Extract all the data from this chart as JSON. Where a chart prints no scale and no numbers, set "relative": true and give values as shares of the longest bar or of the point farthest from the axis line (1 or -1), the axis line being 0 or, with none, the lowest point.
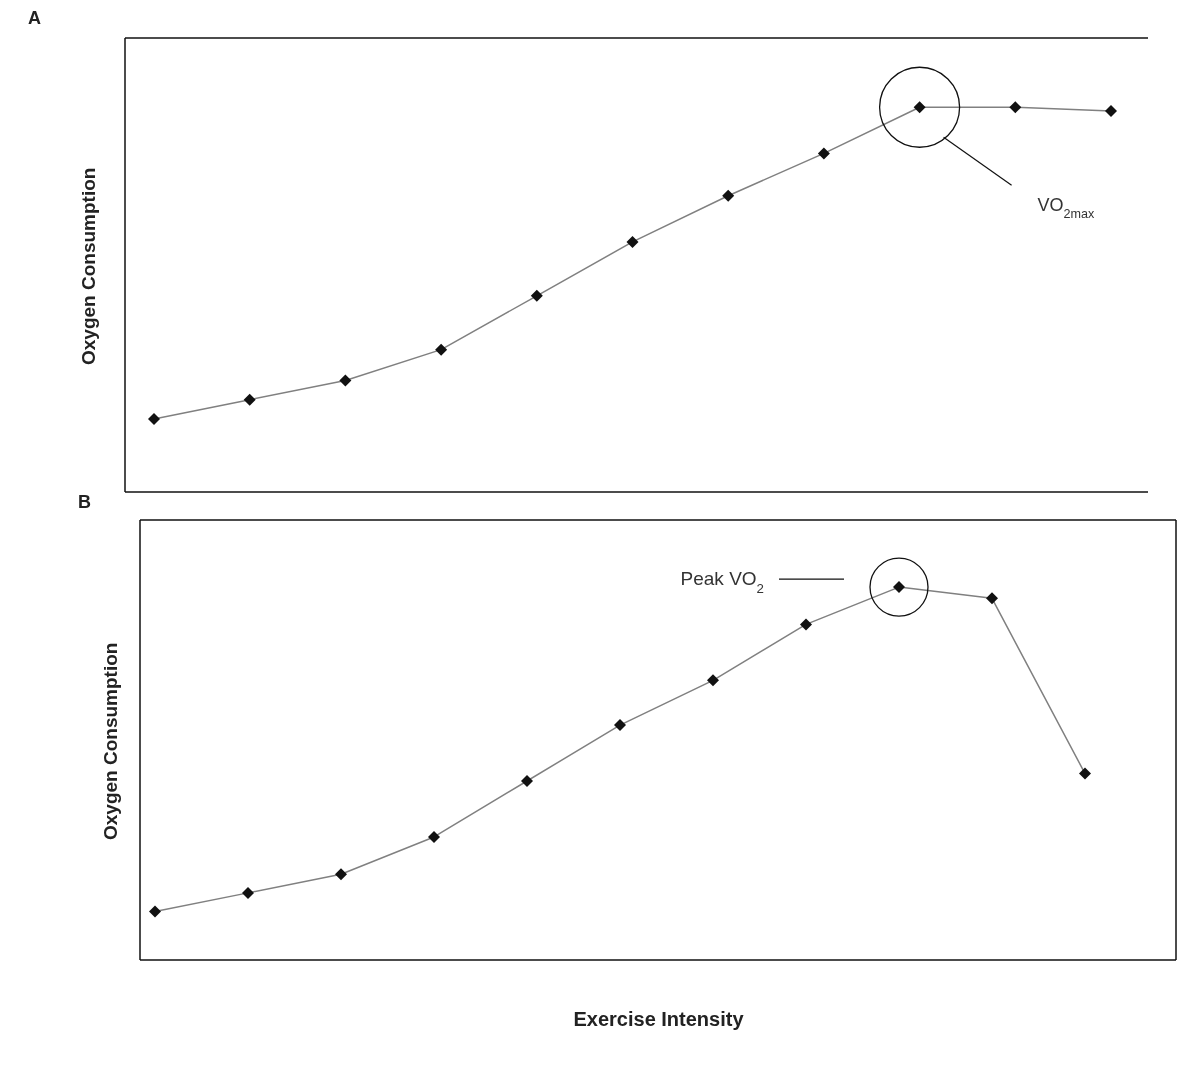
{
  "chart_data": [
    {
      "type": "line",
      "title": "A",
      "ylabel": "Oxygen Consumption",
      "relative": true,
      "categories": [
        null,
        null,
        null,
        null,
        null,
        null,
        null,
        null,
        null,
        null,
        null
      ],
      "series": [
        {
          "color": "#808080",
          "values": [
            0.19,
            0.24,
            0.29,
            0.37,
            0.51,
            0.65,
            0.77,
            0.88,
            1,
            1.0,
            0.99
          ]
        }
      ],
      "annotations": [
        "VO$_{2max}$"
      ],
      "marker": "diamond",
      "tick_labels": false,
      "grid": false
    },
    {
      "type": "line",
      "title": "B",
      "ylabel": "Oxygen Consumption",
      "xlabel": "Exercise Intensity",
      "relative": true,
      "categories": [
        null,
        null,
        null,
        null,
        null,
        null,
        null,
        null,
        null,
        null,
        null
      ],
      "series": [
        {
          "color": "#808080",
          "values": [
            0.13,
            0.18,
            0.23,
            0.33,
            0.48,
            0.63,
            0.75,
            0.9,
            1,
            0.97,
            0.5
          ]
        }
      ],
      "annotations": [
        "Peak VO$_{2}$"
      ],
      "marker": "diamond",
      "tick_labels": false,
      "grid": false
    }
  ]
}
